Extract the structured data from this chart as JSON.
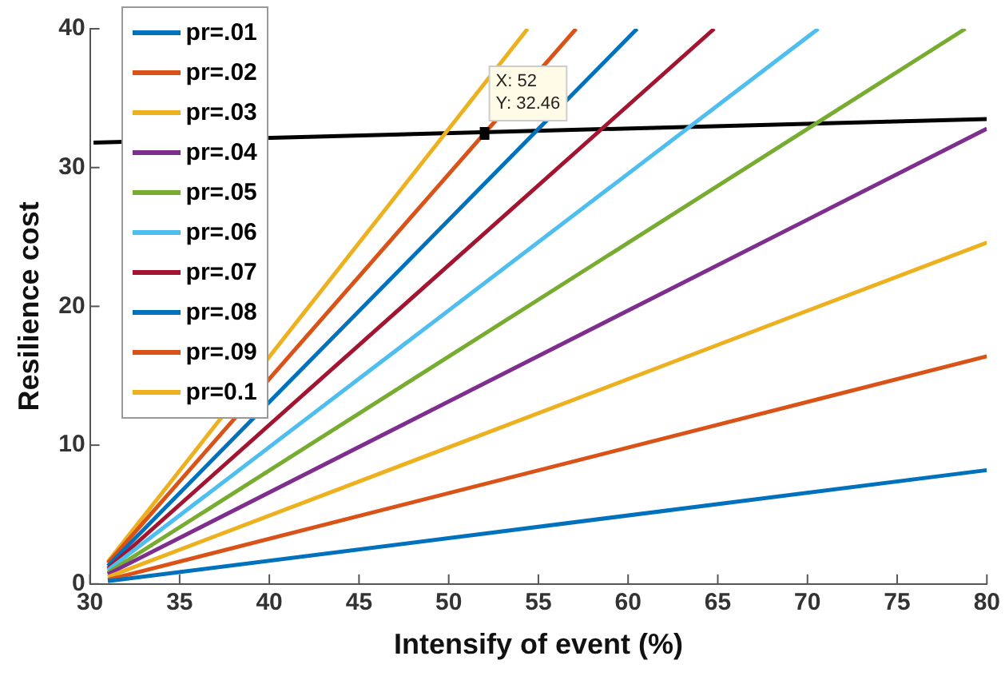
{
  "chart_data": {
    "type": "line",
    "xlabel": "Intensify of event (%)",
    "ylabel": "Resilience cost",
    "xlim": [
      30,
      80
    ],
    "xticks": [
      30,
      35,
      40,
      45,
      50,
      55,
      60,
      65,
      70,
      75,
      80
    ],
    "ylim": [
      0,
      40
    ],
    "yticks": [
      0,
      10,
      20,
      30,
      40
    ],
    "grid": false,
    "legend": "top left",
    "marker": "none",
    "line_style": "solid",
    "series": [
      {
        "name": "pr=.01",
        "color": "#0072bd",
        "x": [
          31,
          80
        ],
        "values": [
          0.2,
          8.2
        ]
      },
      {
        "name": "pr=.02",
        "color": "#d95319",
        "x": [
          31,
          80
        ],
        "values": [
          0.3,
          16.4
        ]
      },
      {
        "name": "pr=.03",
        "color": "#edb120",
        "x": [
          31,
          80
        ],
        "values": [
          0.5,
          24.6
        ]
      },
      {
        "name": "pr=.04",
        "color": "#7e2f8e",
        "x": [
          31,
          80
        ],
        "values": [
          0.7,
          32.8
        ]
      },
      {
        "name": "pr=.05",
        "color": "#77ac30",
        "x": [
          31,
          78.8
        ],
        "values": [
          0.8,
          40
        ]
      },
      {
        "name": "pr=.06",
        "color": "#4dbeee",
        "x": [
          31,
          70.6
        ],
        "values": [
          1.0,
          40
        ]
      },
      {
        "name": "pr=.07",
        "color": "#a2142f",
        "x": [
          31,
          64.8
        ],
        "values": [
          1.1,
          40
        ]
      },
      {
        "name": "pr=.08",
        "color": "#0072bd",
        "x": [
          31,
          60.5
        ],
        "values": [
          1.3,
          40
        ]
      },
      {
        "name": "pr=.09",
        "color": "#d95319",
        "x": [
          31,
          57.1
        ],
        "values": [
          1.5,
          40
        ]
      },
      {
        "name": "pr=0.1",
        "color": "#edb120",
        "x": [
          31,
          54.4
        ],
        "values": [
          1.6,
          40
        ]
      },
      {
        "color": "#000000",
        "x": [
          30.2,
          80
        ],
        "values": [
          31.8,
          33.5
        ]
      }
    ],
    "annotations": [
      {
        "text": "X: 52\nY: 32.46",
        "x": 52,
        "y": 32.46
      }
    ]
  }
}
